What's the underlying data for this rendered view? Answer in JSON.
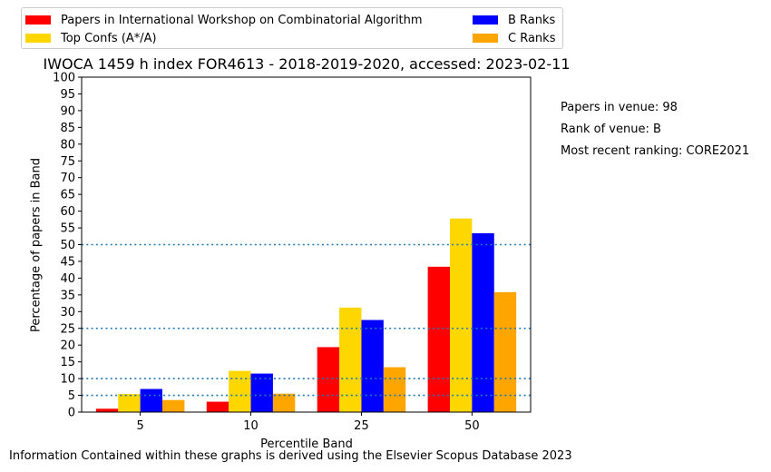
{
  "chart_data": {
    "type": "bar",
    "title": "IWOCA 1459 h index FOR4613 - 2018-2019-2020, accessed: 2023-02-11",
    "xlabel": "Percentile Band",
    "ylabel": "Percentage of papers in Band",
    "categories": [
      "5",
      "10",
      "25",
      "50"
    ],
    "ylim": [
      0,
      100
    ],
    "yticks": [
      "0",
      "5",
      "10",
      "15",
      "20",
      "25",
      "30",
      "35",
      "40",
      "45",
      "50",
      "55",
      "60",
      "65",
      "70",
      "75",
      "80",
      "85",
      "90",
      "95",
      "100"
    ],
    "reference_lines": [
      5,
      10,
      25,
      50
    ],
    "series": [
      {
        "name": "Papers in International Workshop on Combinatorial Algorithm",
        "color": "#ff0000",
        "values": [
          1.0,
          3.1,
          19.4,
          43.4
        ]
      },
      {
        "name": "Top Confs (A*/A)",
        "color": "#ffd700",
        "values": [
          5.4,
          12.3,
          31.2,
          57.8
        ]
      },
      {
        "name": "B Ranks",
        "color": "#0000ff",
        "values": [
          6.9,
          11.5,
          27.5,
          53.4
        ]
      },
      {
        "name": "C Ranks",
        "color": "#ffa500",
        "values": [
          3.6,
          5.5,
          13.4,
          35.8
        ]
      }
    ],
    "grid": false,
    "legend": "top-left, outside plot"
  },
  "info": {
    "papers_in_venue": "Papers in venue: 98",
    "rank_of_venue": "Rank of venue: B",
    "recent_ranking": "Most recent ranking: CORE2021"
  },
  "footer": "Information Contained within these graphs is derived using the Elsevier Scopus Database 2023"
}
